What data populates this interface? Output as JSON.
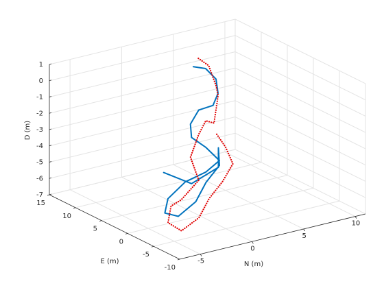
{
  "chart_data": {
    "type": "line3d",
    "xlabel": "N (m)",
    "ylabel": "E (m)",
    "zlabel": "D (m)",
    "xlim": [
      -7,
      11
    ],
    "ylim": [
      -10,
      15
    ],
    "zlim": [
      -7,
      1
    ],
    "xticks": [
      -5,
      0,
      5,
      10
    ],
    "yticks": [
      -10,
      -5,
      0,
      5,
      10,
      15
    ],
    "zticks": [
      -7,
      -6,
      -5,
      -4,
      -3,
      -2,
      -1,
      0,
      1
    ],
    "grid": true,
    "series": [
      {
        "color": "#0072bd",
        "style": "solid",
        "x": [
          2.9,
          4.1,
          5.1,
          5.3,
          3.8,
          1.4,
          0.1,
          -0.3,
          0.6,
          1.9,
          0.6,
          -1.4,
          -4.1,
          -4.9,
          -3.6,
          -1.4,
          0.1,
          1.9,
          1.8,
          1.8,
          -0.8,
          -3.5
        ],
        "y": [
          7,
          7,
          7,
          7,
          5,
          3,
          2,
          1,
          0,
          0,
          0,
          0,
          -2,
          -3,
          -3,
          -2,
          -1,
          0,
          0,
          0,
          0,
          0
        ],
        "z": [
          0.6,
          0.3,
          -0.5,
          -1.4,
          -1.6,
          -1.2,
          -1.7,
          -2.3,
          -2.9,
          -3.9,
          -4.4,
          -4.7,
          -5.0,
          -5.6,
          -6.0,
          -5.6,
          -4.8,
          -4.2,
          -3.1,
          -4.3,
          -4.9,
          -3.8
        ]
      },
      {
        "color": "#e00000",
        "style": "dotted",
        "x": [
          3.9,
          4.9,
          5.1,
          4.8,
          3.9,
          2.6,
          1.4,
          -0.4,
          -0.1,
          -2.3,
          -3.8,
          -5.1,
          -3.8,
          -1.6,
          -0.1,
          1.7,
          3.2,
          3.0,
          3.1
        ],
        "y": [
          8,
          8,
          7,
          6,
          5,
          4,
          3,
          1,
          0,
          -1,
          -2,
          -4,
          -4,
          -3,
          -2,
          -1,
          0,
          1,
          3
        ],
        "z": [
          0.8,
          0.2,
          -0.9,
          -1.3,
          -2.7,
          -2.2,
          -2.7,
          -3.5,
          -4.8,
          -5.5,
          -5.5,
          -6.0,
          -6.7,
          -6.4,
          -5.6,
          -5.0,
          -4.3,
          -3.4,
          -2.9
        ]
      }
    ]
  }
}
